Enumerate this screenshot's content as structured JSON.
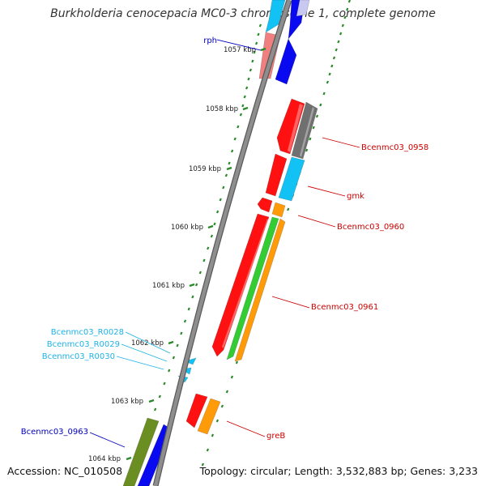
{
  "title": "Burkholderia cenocepacia MC0-3 chromosome 1, complete genome",
  "footer": {
    "accession": "Accession: NC_010508",
    "summary": "Topology: circular; Length: 3,532,883 bp; Genes: 3,233"
  },
  "colors": {
    "backbone": "#8e8e8e",
    "tick": "#2a8a2a",
    "tick_label": "#222222",
    "label_red": "#cc0000",
    "label_blue": "#0000bb",
    "label_cyan": "#1fb3e6",
    "red": "#ff1111",
    "blue": "#0a0af0",
    "cyan": "#13c2f5",
    "pink": "#f08080",
    "dark_gray": "#707070",
    "orange": "#ff9a08",
    "green": "#33cc33",
    "olive": "#6b8e23",
    "lavender": "#c8c8f0"
  },
  "ticks": [
    {
      "label": "1057 kbp"
    },
    {
      "label": "1058 kbp"
    },
    {
      "label": "1059 kbp"
    },
    {
      "label": "1060 kbp"
    },
    {
      "label": "1061 kbp"
    },
    {
      "label": "1062 kbp"
    },
    {
      "label": "1063 kbp"
    },
    {
      "label": "1064 kbp"
    }
  ],
  "feature_labels": [
    {
      "text": "rph",
      "color": "label_blue"
    },
    {
      "text": "Bcenmc03_0958",
      "color": "label_red"
    },
    {
      "text": "gmk",
      "color": "label_red"
    },
    {
      "text": "Bcenmc03_0960",
      "color": "label_red"
    },
    {
      "text": "Bcenmc03_0961",
      "color": "label_red"
    },
    {
      "text": "Bcenmc03_R0028",
      "color": "label_cyan"
    },
    {
      "text": "Bcenmc03_R0029",
      "color": "label_cyan"
    },
    {
      "text": "Bcenmc03_R0030",
      "color": "label_cyan"
    },
    {
      "text": "greB",
      "color": "label_red"
    },
    {
      "text": "Bcenmc03_0963",
      "color": "label_blue"
    }
  ]
}
